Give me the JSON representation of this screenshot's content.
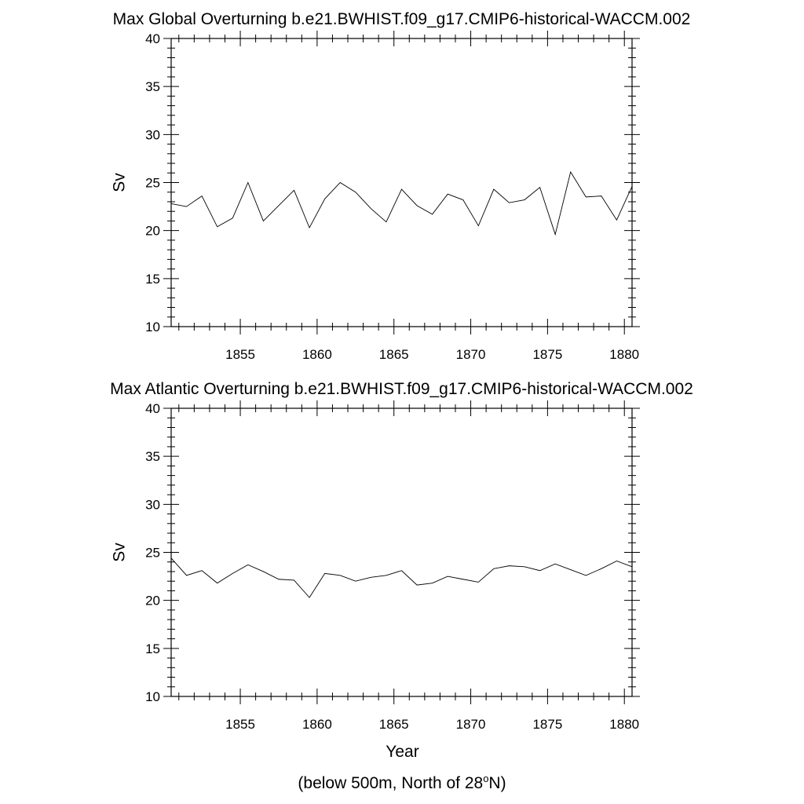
{
  "chart_data": [
    {
      "type": "line",
      "title": "Max Global Overturning b.e21.BWHIST.f09_g17.CMIP6-historical-WACCM.002",
      "xlabel": "",
      "ylabel": "Sv",
      "xlim": [
        1850.5,
        1880.5
      ],
      "ylim": [
        10,
        40
      ],
      "x_ticks": [
        1855,
        1860,
        1865,
        1870,
        1875,
        1880
      ],
      "y_ticks": [
        10,
        15,
        20,
        25,
        30,
        35,
        40
      ],
      "grid": false,
      "line_color": "#000000",
      "series": [
        {
          "x": [
            1850.5,
            1851.5,
            1852.5,
            1853.5,
            1854.5,
            1855.5,
            1856.5,
            1857.5,
            1858.5,
            1859.5,
            1860.5,
            1861.5,
            1862.5,
            1863.5,
            1864.5,
            1865.5,
            1866.5,
            1867.5,
            1868.5,
            1869.5,
            1870.5,
            1871.5,
            1872.5,
            1873.5,
            1874.5,
            1875.5,
            1876.5,
            1877.5,
            1878.5,
            1879.5,
            1880.5
          ],
          "values": [
            22.8,
            22.5,
            23.6,
            20.4,
            21.3,
            25.0,
            21.0,
            22.6,
            24.2,
            20.3,
            23.3,
            25.0,
            24.0,
            22.3,
            20.9,
            24.3,
            22.6,
            21.7,
            23.8,
            23.2,
            20.5,
            24.3,
            22.9,
            23.2,
            24.5,
            19.6,
            26.1,
            23.5,
            23.6,
            21.1,
            24.6
          ]
        }
      ]
    },
    {
      "type": "line",
      "title": "Max Atlantic Overturning b.e21.BWHIST.f09_g17.CMIP6-historical-WACCM.002",
      "xlabel": "Year",
      "ylabel": "Sv",
      "xlim": [
        1850.5,
        1880.5
      ],
      "ylim": [
        10,
        40
      ],
      "x_ticks": [
        1855,
        1860,
        1865,
        1870,
        1875,
        1880
      ],
      "y_ticks": [
        10,
        15,
        20,
        25,
        30,
        35,
        40
      ],
      "grid": false,
      "line_color": "#000000",
      "series": [
        {
          "x": [
            1850.5,
            1851.5,
            1852.5,
            1853.5,
            1854.5,
            1855.5,
            1856.5,
            1857.5,
            1858.5,
            1859.5,
            1860.5,
            1861.5,
            1862.5,
            1863.5,
            1864.5,
            1865.5,
            1866.5,
            1867.5,
            1868.5,
            1869.5,
            1870.5,
            1871.5,
            1872.5,
            1873.5,
            1874.5,
            1875.5,
            1876.5,
            1877.5,
            1878.5,
            1879.5,
            1880.5
          ],
          "values": [
            24.4,
            22.6,
            23.1,
            21.8,
            22.8,
            23.7,
            23.0,
            22.2,
            22.1,
            20.3,
            22.8,
            22.6,
            22.0,
            22.4,
            22.6,
            23.1,
            21.6,
            21.8,
            22.5,
            22.2,
            21.9,
            23.3,
            23.6,
            23.5,
            23.1,
            23.8,
            23.2,
            22.6,
            23.3,
            24.1,
            23.5
          ]
        }
      ]
    }
  ],
  "footnote": {
    "prefix": "(below 500m, North of 28",
    "superscript": "o",
    "suffix": "N)"
  }
}
